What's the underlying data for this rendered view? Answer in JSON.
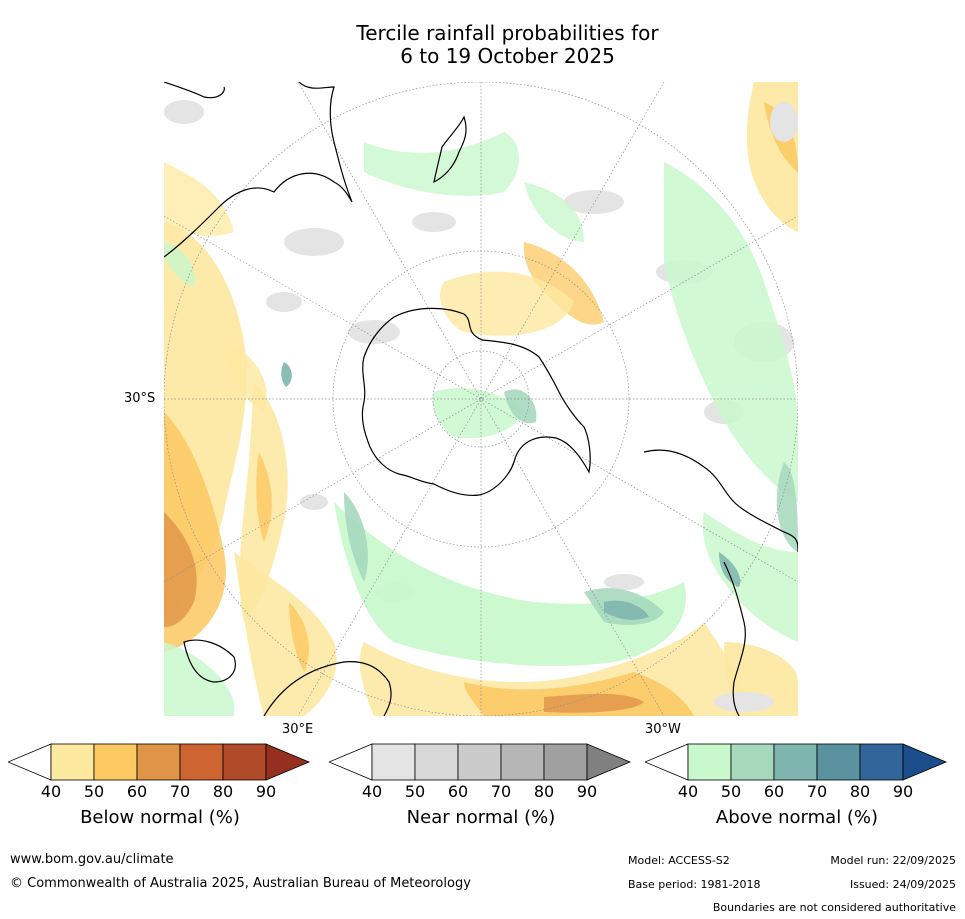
{
  "title_line1": "Tercile rainfall probabilities for",
  "title_line2": "6 to 19 October 2025",
  "map": {
    "lat_label": "30°S",
    "lon_label_east": "30°E",
    "lon_label_west": "30°W"
  },
  "colorbars": {
    "ticks": [
      "40",
      "50",
      "60",
      "70",
      "80",
      "90"
    ],
    "below": {
      "label": "Below normal (%)",
      "colors": [
        "#ffffff",
        "#fde8a0",
        "#fcc862",
        "#e09448",
        "#cd6431",
        "#b04a28",
        "#953020"
      ]
    },
    "near": {
      "label": "Near normal (%)",
      "colors": [
        "#ffffff",
        "#e4e4e4",
        "#d8d8d8",
        "#cacaca",
        "#b6b6b6",
        "#a0a0a0",
        "#808080"
      ]
    },
    "above": {
      "label": "Above normal (%)",
      "colors": [
        "#ffffff",
        "#c8f8cc",
        "#a6d8bc",
        "#7eb5ae",
        "#5a92a0",
        "#32669a",
        "#1a4d8a"
      ]
    }
  },
  "footer": {
    "url": "www.bom.gov.au/climate",
    "copyright": "© Commonwealth of Australia 2025, Australian Bureau of Meteorology",
    "model": "Model: ACCESS-S2",
    "base_period": "Base period: 1981-2018",
    "model_run": "Model run: 22/09/2025",
    "issued": "Issued: 24/09/2025",
    "disclaimer": "Boundaries are not considered authoritative"
  }
}
